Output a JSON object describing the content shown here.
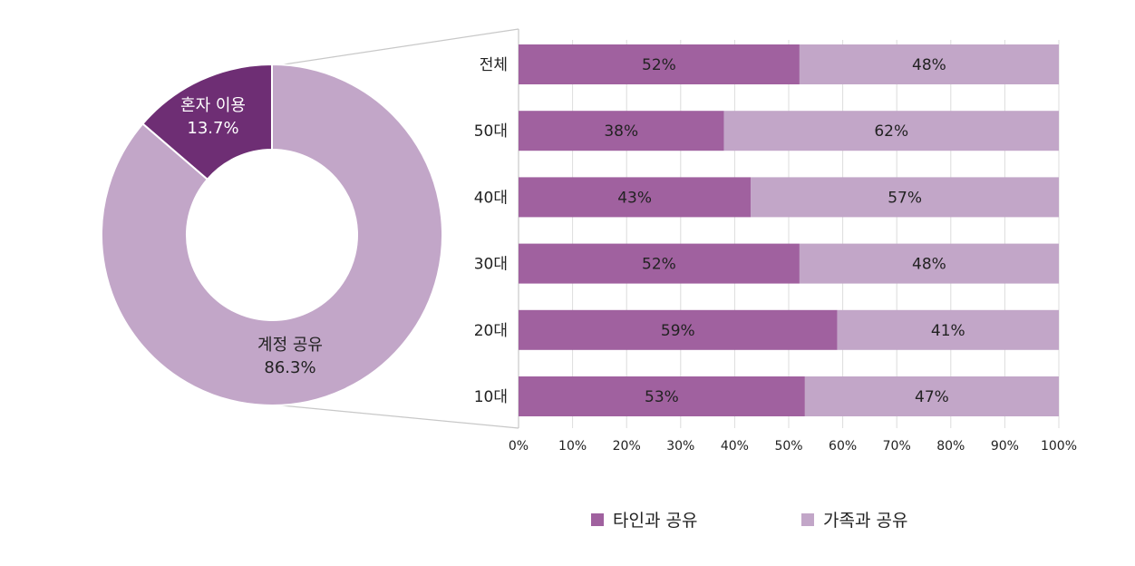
{
  "chart_data": [
    {
      "type": "pie",
      "donut": true,
      "slices": [
        {
          "label": "혼자 이용",
          "value": 13.7,
          "value_label": "13.7%",
          "color": "#6e2e74"
        },
        {
          "label": "계정 공유",
          "value": 86.3,
          "value_label": "86.3%",
          "color": "#c2a6c8"
        }
      ]
    },
    {
      "type": "bar",
      "orientation": "horizontal",
      "stacked": true,
      "categories": [
        "전체",
        "50대",
        "40대",
        "30대",
        "20대",
        "10대"
      ],
      "series": [
        {
          "name": "타인과 공유",
          "color": "#a0619f",
          "values": [
            52,
            38,
            43,
            52,
            59,
            53
          ]
        },
        {
          "name": "가족과 공유",
          "color": "#c2a6c8",
          "values": [
            48,
            62,
            57,
            48,
            41,
            47
          ]
        }
      ],
      "xlim": [
        0,
        100
      ],
      "xticks": [
        "0%",
        "10%",
        "20%",
        "30%",
        "40%",
        "50%",
        "60%",
        "70%",
        "80%",
        "90%",
        "100%"
      ],
      "grid": true,
      "legend": "bottom"
    }
  ]
}
